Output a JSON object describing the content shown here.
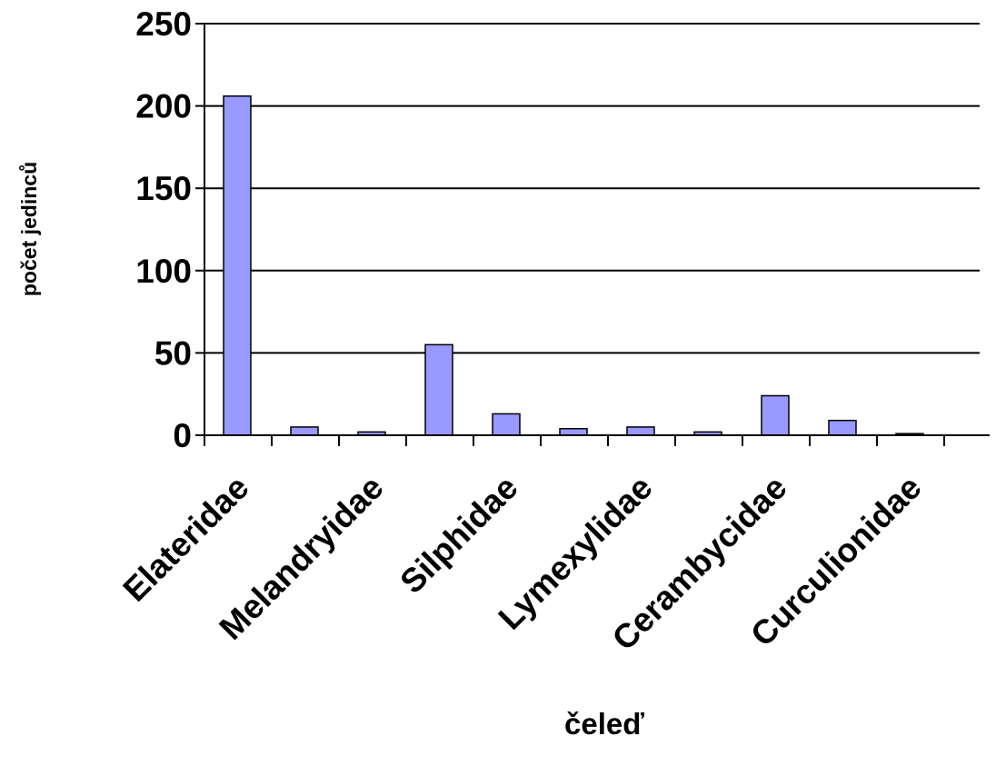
{
  "chart_data": {
    "type": "bar",
    "title": "",
    "xlabel": "čeleď",
    "ylabel": "počet jedinců",
    "ylim": [
      0,
      250
    ],
    "yticks": [
      0,
      50,
      100,
      150,
      200,
      250
    ],
    "grid": true,
    "legend": "none",
    "bar_color": "#9999ff",
    "categories": [
      "Elateridae",
      "",
      "Melandryidae",
      "",
      "Silphidae",
      "",
      "Lymexylidae",
      "",
      "Cerambycidae",
      "",
      "Curculionidae"
    ],
    "values": [
      206,
      5,
      2,
      55,
      13,
      4,
      5,
      2,
      24,
      9,
      1
    ]
  }
}
